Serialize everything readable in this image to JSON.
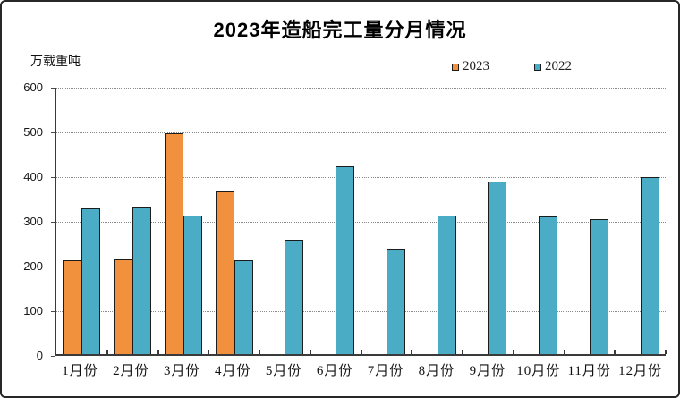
{
  "chart_data": {
    "type": "bar",
    "title": "2023年造船完工量分月情况",
    "unit_label": "万载重吨",
    "categories": [
      "1月份",
      "2月份",
      "3月份",
      "4月份",
      "5月份",
      "6月份",
      "7月份",
      "8月份",
      "9月份",
      "10月份",
      "11月份",
      "12月份"
    ],
    "series": [
      {
        "name": "2023",
        "color": "#F2913D",
        "values": [
          211,
          212,
          494,
          365,
          null,
          null,
          null,
          null,
          null,
          null,
          null,
          null
        ]
      },
      {
        "name": "2022",
        "color": "#4BACC6",
        "values": [
          327,
          329,
          310,
          210,
          257,
          421,
          236,
          310,
          386,
          308,
          303,
          397
        ]
      }
    ],
    "ylim": [
      0,
      600
    ],
    "yticks": [
      0,
      100,
      200,
      300,
      400,
      500,
      600
    ],
    "xlabel": "",
    "ylabel": "",
    "grid": "horizontal-dotted",
    "legend_position": "top-right",
    "colors": {
      "bar_border": "#1C1C1C",
      "axis": "#3A3A3A",
      "gridline": "#8A8A8A",
      "background": "#FFFFFF"
    }
  }
}
